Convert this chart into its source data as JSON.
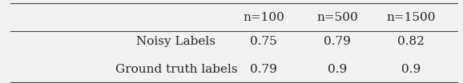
{
  "col_headers": [
    "n=100",
    "n=500",
    "n=1500"
  ],
  "row_labels": [
    "Noisy Labels",
    "Ground truth labels"
  ],
  "values": [
    [
      "0.75",
      "0.79",
      "0.82"
    ],
    [
      "0.79",
      "0.9",
      "0.9"
    ]
  ],
  "background_color": "#f2f2f2",
  "text_color": "#222222",
  "fontsize": 11
}
